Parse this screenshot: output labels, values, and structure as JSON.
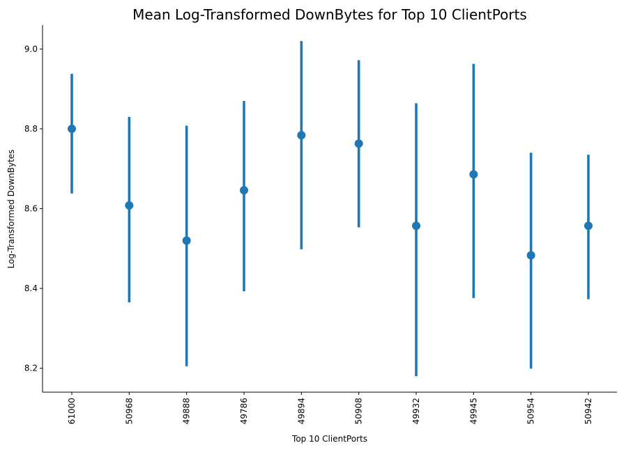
{
  "chart_data": {
    "type": "scatter",
    "title": "Mean Log-Transformed DownBytes for Top 10 ClientPorts",
    "xlabel": "Top 10 ClientPorts",
    "ylabel": "Log-Transformed DownBytes",
    "categories": [
      "61000",
      "50968",
      "49888",
      "49786",
      "49894",
      "50908",
      "49932",
      "49945",
      "50954",
      "50942"
    ],
    "series": [
      {
        "values": [
          8.8,
          8.608,
          8.52,
          8.646,
          8.784,
          8.763,
          8.557,
          8.686,
          8.483,
          8.557
        ],
        "ci_low": [
          8.638,
          8.365,
          8.205,
          8.393,
          8.498,
          8.553,
          8.18,
          8.376,
          8.199,
          8.373
        ],
        "ci_high": [
          8.938,
          8.83,
          8.808,
          8.87,
          9.02,
          8.972,
          8.864,
          8.963,
          8.74,
          8.735
        ]
      }
    ],
    "ylim": [
      8.14,
      9.06
    ],
    "yticks": [
      "8.2",
      "8.4",
      "8.6",
      "8.8",
      "9.0"
    ],
    "grid": false,
    "color": "#1f77b4"
  }
}
